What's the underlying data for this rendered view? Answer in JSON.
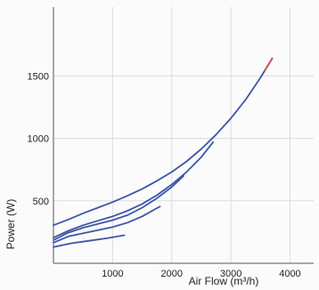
{
  "chart_data": {
    "type": "line",
    "title": "",
    "xlabel": "Air Flow (m³/h)",
    "ylabel": "Power (W)",
    "xlim": [
      0,
      4400
    ],
    "ylim": [
      0,
      2050
    ],
    "xticks": [
      1000,
      2000,
      3000,
      4000
    ],
    "yticks": [
      500,
      1000,
      1500
    ],
    "grid": true,
    "legend": "none",
    "colors": {
      "series": "#3d55a8",
      "highlight": "#e0474c",
      "grid": "#dcdcdc",
      "axis": "#555555"
    },
    "series": [
      {
        "x": [
          0,
          250,
          500,
          750,
          1000,
          1250,
          1500,
          1750,
          2000,
          2250,
          2500,
          2750,
          3000,
          3250,
          3500,
          3700
        ],
        "y": [
          305,
          350,
          400,
          445,
          490,
          540,
          595,
          660,
          730,
          815,
          915,
          1030,
          1160,
          1310,
          1485,
          1640
        ]
      },
      {
        "x": [
          0,
          250,
          500,
          750,
          1000,
          1250,
          1500,
          1750,
          2000,
          2250,
          2500,
          2700
        ],
        "y": [
          205,
          260,
          305,
          340,
          375,
          420,
          475,
          545,
          630,
          730,
          850,
          970
        ]
      },
      {
        "x": [
          0,
          250,
          500,
          750,
          1000,
          1250,
          1500,
          1750,
          2000,
          2200
        ],
        "y": [
          185,
          245,
          285,
          315,
          345,
          385,
          445,
          520,
          610,
          700
        ]
      },
      {
        "x": [
          0,
          250,
          500,
          750,
          1000,
          1250,
          1500,
          1800
        ],
        "y": [
          165,
          215,
          240,
          265,
          290,
          325,
          375,
          455
        ]
      },
      {
        "x": [
          0,
          300,
          600,
          900,
          1200
        ],
        "y": [
          130,
          160,
          180,
          200,
          225
        ]
      }
    ]
  }
}
